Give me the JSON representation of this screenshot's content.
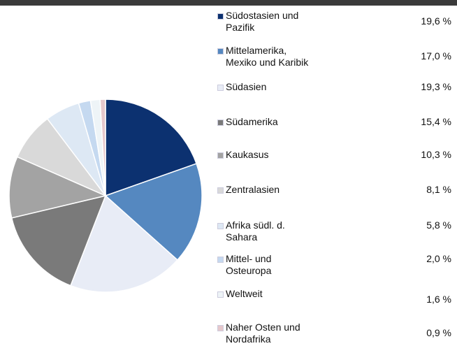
{
  "chart_data": {
    "type": "pie",
    "categories": [
      "Südostasien und Pazifik",
      "Mittelamerika, Mexiko und Karibik",
      "Südasien",
      "Südamerika",
      "Kaukasus",
      "Zentralasien",
      "Afrika südl. d. Sahara",
      "Mittel- und Osteuropa",
      "Weltweit",
      "Naher Osten und Nordafrika"
    ],
    "values": [
      19.6,
      17.0,
      19.3,
      15.4,
      10.3,
      8.1,
      5.8,
      2.0,
      1.6,
      0.9
    ],
    "value_labels": [
      "19,6 %",
      "17,0 %",
      "19,3 %",
      "15,4 %",
      "10,3 %",
      "8,1 %",
      "5,8 %",
      "2,0 %",
      "1,6 %",
      "0,9 %"
    ],
    "colors": [
      "#0c3170",
      "#5588c0",
      "#e8ecf6",
      "#7a7a7a",
      "#a3a3a3",
      "#d9d9d9",
      "#dde8f4",
      "#c5d9f0",
      "#eef4f7",
      "#e6c8cc"
    ]
  }
}
